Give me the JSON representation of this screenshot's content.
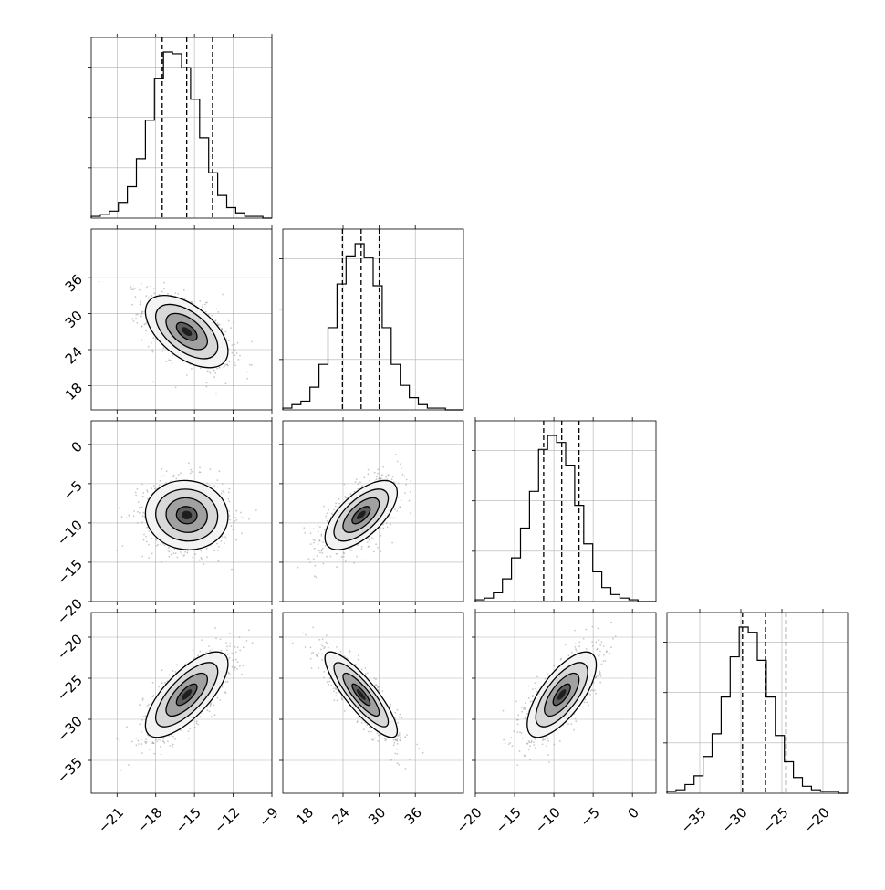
{
  "chart_data": {
    "type": "corner",
    "parameters": [
      {
        "range": [
          -23,
          -9
        ],
        "ticks": [
          -21,
          -18,
          -15,
          -12,
          -9
        ],
        "tick_labels": [
          "−21",
          "−18",
          "−15",
          "−12",
          "−9"
        ],
        "quantiles": [
          -17.5,
          -15.6,
          -13.6
        ],
        "mean": -15.6,
        "sd": 1.6
      },
      {
        "range": [
          14,
          44
        ],
        "ticks": [
          18,
          24,
          30,
          36
        ],
        "tick_labels": [
          "18",
          "24",
          "30",
          "36"
        ],
        "quantiles": [
          23.9,
          27.0,
          30.0
        ],
        "mean": 27.0,
        "sd": 3.0
      },
      {
        "range": [
          -20,
          3
        ],
        "ticks": [
          -20,
          -15,
          -10,
          -5,
          0
        ],
        "tick_labels": [
          "−20",
          "−15",
          "−10",
          "−5",
          "0"
        ],
        "quantiles": [
          -11.3,
          -9.0,
          -6.8
        ],
        "mean": -9.0,
        "sd": 2.2
      },
      {
        "range": [
          -39,
          -17
        ],
        "ticks": [
          -35,
          -30,
          -25,
          -20
        ],
        "tick_labels": [
          "−35",
          "−30",
          "−25",
          "−20"
        ],
        "quantiles": [
          -29.8,
          -27.0,
          -24.5
        ],
        "mean": -27.0,
        "sd": 2.6
      }
    ],
    "histograms": [
      {
        "edges": [
          -23,
          -9
        ],
        "counts": [
          1,
          2,
          4,
          9,
          18,
          34,
          56,
          80,
          95,
          94,
          86,
          68,
          46,
          26,
          13,
          6,
          3,
          1,
          1,
          0
        ]
      },
      {
        "edges": [
          14,
          44
        ],
        "counts": [
          1,
          3,
          5,
          13,
          26,
          47,
          72,
          88,
          95,
          87,
          71,
          47,
          26,
          14,
          7,
          3,
          1,
          1,
          0,
          0
        ]
      },
      {
        "edges": [
          -20,
          3
        ],
        "counts": [
          1,
          2,
          5,
          13,
          25,
          42,
          63,
          87,
          95,
          91,
          78,
          55,
          33,
          17,
          8,
          4,
          2,
          1,
          0,
          0
        ]
      },
      {
        "edges": [
          -39,
          -17
        ],
        "counts": [
          1,
          2,
          5,
          10,
          21,
          34,
          55,
          78,
          95,
          92,
          76,
          55,
          33,
          18,
          9,
          4,
          2,
          1,
          1,
          0
        ]
      }
    ],
    "correlations": [
      {
        "x": 0,
        "y": 1,
        "rho": -0.55
      },
      {
        "x": 0,
        "y": 2,
        "rho": -0.05
      },
      {
        "x": 0,
        "y": 3,
        "rho": 0.72
      },
      {
        "x": 1,
        "y": 2,
        "rho": 0.65
      },
      {
        "x": 1,
        "y": 3,
        "rho": -0.85
      },
      {
        "x": 2,
        "y": 3,
        "rho": 0.7
      }
    ],
    "contour_levels_sigma": [
      0.5,
      1.0,
      1.5,
      2.0
    ],
    "grid": true,
    "line_color": "#000000",
    "point_color": "#9a9a9a"
  }
}
